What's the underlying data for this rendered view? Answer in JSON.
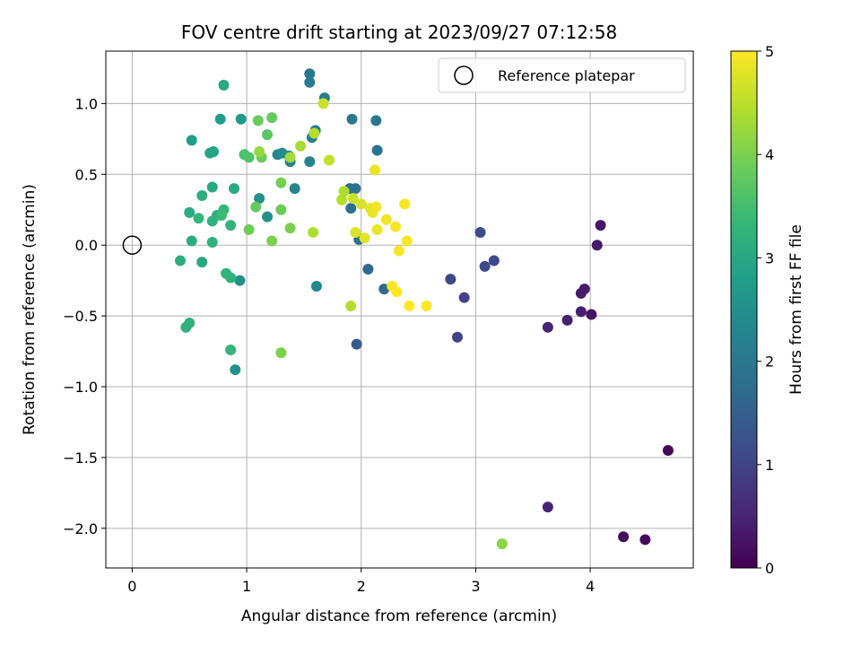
{
  "chart_data": {
    "type": "scatter",
    "title": "FOV centre drift starting at 2023/09/27 07:12:58",
    "xlabel": "Angular distance from reference (arcmin)",
    "ylabel": "Rotation from reference (arcmin)",
    "xlim": [
      -0.23,
      4.9
    ],
    "ylim": [
      -2.28,
      1.37
    ],
    "xticks": [
      0,
      1,
      2,
      3,
      4
    ],
    "yticks": [
      -2.0,
      -1.5,
      -1.0,
      -0.5,
      0.0,
      0.5,
      1.0
    ],
    "xtick_labels": [
      "0",
      "1",
      "2",
      "3",
      "4"
    ],
    "ytick_labels": [
      "−2.0",
      "−1.5",
      "−1.0",
      "−0.5",
      "0.0",
      "0.5",
      "1.0"
    ],
    "grid": true,
    "colormap": "viridis",
    "colorbar": {
      "label": "Hours from first FF file",
      "range": [
        0,
        5
      ],
      "ticks": [
        0,
        1,
        2,
        3,
        4,
        5
      ],
      "tick_labels": [
        "0",
        "1",
        "2",
        "3",
        "4",
        "5"
      ]
    },
    "legend": {
      "position": "top-right",
      "entries": [
        {
          "label": "Reference platepar",
          "marker": "open-circle"
        }
      ]
    },
    "reference_point": {
      "x": 0.0,
      "y": 0.0
    },
    "points": [
      {
        "x": 4.68,
        "y": -1.45,
        "c": 0.1
      },
      {
        "x": 4.48,
        "y": -2.08,
        "c": 0.15
      },
      {
        "x": 4.29,
        "y": -2.06,
        "c": 0.15
      },
      {
        "x": 4.09,
        "y": 0.14,
        "c": 0.3
      },
      {
        "x": 4.06,
        "y": 0.0,
        "c": 0.35
      },
      {
        "x": 4.01,
        "y": -0.49,
        "c": 0.25
      },
      {
        "x": 3.95,
        "y": -0.31,
        "c": 0.35
      },
      {
        "x": 3.92,
        "y": -0.34,
        "c": 0.35
      },
      {
        "x": 3.92,
        "y": -0.47,
        "c": 0.4
      },
      {
        "x": 3.8,
        "y": -0.53,
        "c": 0.45
      },
      {
        "x": 3.63,
        "y": -0.58,
        "c": 0.5
      },
      {
        "x": 3.63,
        "y": -1.85,
        "c": 0.5
      },
      {
        "x": 3.16,
        "y": -0.11,
        "c": 1.1
      },
      {
        "x": 3.08,
        "y": -0.15,
        "c": 1.1
      },
      {
        "x": 3.04,
        "y": 0.09,
        "c": 1.15
      },
      {
        "x": 2.9,
        "y": -0.37,
        "c": 1.0
      },
      {
        "x": 2.84,
        "y": -0.65,
        "c": 1.0
      },
      {
        "x": 2.78,
        "y": -0.24,
        "c": 1.1
      },
      {
        "x": 2.2,
        "y": -0.31,
        "c": 1.7
      },
      {
        "x": 2.06,
        "y": -0.17,
        "c": 1.7
      },
      {
        "x": 1.96,
        "y": -0.7,
        "c": 1.4
      },
      {
        "x": 1.98,
        "y": 0.04,
        "c": 1.85
      },
      {
        "x": 1.91,
        "y": 0.26,
        "c": 1.85
      },
      {
        "x": 1.95,
        "y": 0.4,
        "c": 1.9
      },
      {
        "x": 1.9,
        "y": 0.4,
        "c": 1.9
      },
      {
        "x": 2.14,
        "y": 0.67,
        "c": 1.9
      },
      {
        "x": 2.13,
        "y": 0.88,
        "c": 2.0
      },
      {
        "x": 1.92,
        "y": 0.89,
        "c": 2.0
      },
      {
        "x": 1.55,
        "y": 1.21,
        "c": 2.0
      },
      {
        "x": 1.55,
        "y": 1.15,
        "c": 2.05
      },
      {
        "x": 1.68,
        "y": 1.04,
        "c": 2.1
      },
      {
        "x": 1.6,
        "y": 0.81,
        "c": 2.1
      },
      {
        "x": 1.57,
        "y": 0.76,
        "c": 2.2
      },
      {
        "x": 1.55,
        "y": 0.59,
        "c": 2.25
      },
      {
        "x": 1.42,
        "y": 0.4,
        "c": 2.3
      },
      {
        "x": 1.61,
        "y": -0.29,
        "c": 2.35
      },
      {
        "x": 1.38,
        "y": 0.59,
        "c": 2.15
      },
      {
        "x": 1.37,
        "y": 0.63,
        "c": 2.2
      },
      {
        "x": 1.27,
        "y": 0.64,
        "c": 2.25
      },
      {
        "x": 1.31,
        "y": 0.65,
        "c": 2.4
      },
      {
        "x": 1.18,
        "y": 0.2,
        "c": 2.5
      },
      {
        "x": 1.11,
        "y": 0.33,
        "c": 2.5
      },
      {
        "x": 0.94,
        "y": -0.25,
        "c": 2.5
      },
      {
        "x": 0.9,
        "y": -0.88,
        "c": 2.5
      },
      {
        "x": 0.95,
        "y": 0.89,
        "c": 2.7
      },
      {
        "x": 0.77,
        "y": 0.89,
        "c": 2.8
      },
      {
        "x": 0.8,
        "y": 1.13,
        "c": 3.0
      },
      {
        "x": 0.52,
        "y": 0.74,
        "c": 2.8
      },
      {
        "x": 0.68,
        "y": 0.65,
        "c": 2.9
      },
      {
        "x": 0.71,
        "y": 0.66,
        "c": 2.9
      },
      {
        "x": 0.7,
        "y": 0.41,
        "c": 3.0
      },
      {
        "x": 0.89,
        "y": 0.4,
        "c": 3.05
      },
      {
        "x": 0.61,
        "y": 0.35,
        "c": 3.1
      },
      {
        "x": 0.5,
        "y": 0.23,
        "c": 3.05
      },
      {
        "x": 0.74,
        "y": 0.21,
        "c": 3.2
      },
      {
        "x": 0.8,
        "y": 0.25,
        "c": 3.3
      },
      {
        "x": 0.78,
        "y": 0.21,
        "c": 3.4
      },
      {
        "x": 0.58,
        "y": 0.19,
        "c": 3.3
      },
      {
        "x": 0.7,
        "y": 0.17,
        "c": 3.2
      },
      {
        "x": 0.86,
        "y": 0.14,
        "c": 3.25
      },
      {
        "x": 0.52,
        "y": 0.03,
        "c": 3.1
      },
      {
        "x": 0.7,
        "y": 0.02,
        "c": 3.2
      },
      {
        "x": 0.42,
        "y": -0.11,
        "c": 3.1
      },
      {
        "x": 0.61,
        "y": -0.12,
        "c": 3.0
      },
      {
        "x": 0.82,
        "y": -0.2,
        "c": 3.25
      },
      {
        "x": 0.86,
        "y": -0.23,
        "c": 3.2
      },
      {
        "x": 0.5,
        "y": -0.55,
        "c": 3.2
      },
      {
        "x": 0.47,
        "y": -0.58,
        "c": 3.2
      },
      {
        "x": 0.86,
        "y": -0.74,
        "c": 3.3
      },
      {
        "x": 0.98,
        "y": 0.64,
        "c": 3.55
      },
      {
        "x": 1.02,
        "y": 0.62,
        "c": 3.6
      },
      {
        "x": 1.18,
        "y": 0.78,
        "c": 3.7
      },
      {
        "x": 1.22,
        "y": 0.9,
        "c": 3.8
      },
      {
        "x": 1.1,
        "y": 0.88,
        "c": 3.85
      },
      {
        "x": 1.13,
        "y": 0.62,
        "c": 3.9
      },
      {
        "x": 1.08,
        "y": 0.27,
        "c": 3.8
      },
      {
        "x": 1.02,
        "y": 0.11,
        "c": 3.9
      },
      {
        "x": 1.22,
        "y": 0.03,
        "c": 4.0
      },
      {
        "x": 1.3,
        "y": 0.25,
        "c": 3.85
      },
      {
        "x": 1.3,
        "y": 0.44,
        "c": 3.95
      },
      {
        "x": 1.38,
        "y": 0.12,
        "c": 4.0
      },
      {
        "x": 1.3,
        "y": -0.76,
        "c": 4.0
      },
      {
        "x": 1.58,
        "y": 0.09,
        "c": 4.4
      },
      {
        "x": 1.11,
        "y": 0.66,
        "c": 4.2
      },
      {
        "x": 1.38,
        "y": 0.62,
        "c": 4.3
      },
      {
        "x": 1.47,
        "y": 0.7,
        "c": 4.35
      },
      {
        "x": 1.59,
        "y": 0.79,
        "c": 4.45
      },
      {
        "x": 1.67,
        "y": 1.0,
        "c": 4.6
      },
      {
        "x": 1.72,
        "y": 0.6,
        "c": 4.55
      },
      {
        "x": 1.83,
        "y": 0.32,
        "c": 4.45
      },
      {
        "x": 1.85,
        "y": 0.38,
        "c": 4.4
      },
      {
        "x": 1.91,
        "y": -0.43,
        "c": 4.45
      },
      {
        "x": 3.23,
        "y": -2.11,
        "c": 4.1
      },
      {
        "x": 1.93,
        "y": 0.33,
        "c": 4.6
      },
      {
        "x": 2.0,
        "y": 0.29,
        "c": 4.7
      },
      {
        "x": 1.95,
        "y": 0.09,
        "c": 4.75
      },
      {
        "x": 2.03,
        "y": 0.05,
        "c": 4.8
      },
      {
        "x": 2.08,
        "y": 0.26,
        "c": 4.8
      },
      {
        "x": 2.1,
        "y": 0.23,
        "c": 4.85
      },
      {
        "x": 2.13,
        "y": 0.27,
        "c": 4.9
      },
      {
        "x": 2.12,
        "y": 0.53,
        "c": 4.85
      },
      {
        "x": 2.14,
        "y": 0.11,
        "c": 4.85
      },
      {
        "x": 2.22,
        "y": 0.18,
        "c": 4.9
      },
      {
        "x": 2.3,
        "y": 0.13,
        "c": 4.95
      },
      {
        "x": 2.38,
        "y": 0.29,
        "c": 4.95
      },
      {
        "x": 2.4,
        "y": 0.03,
        "c": 4.95
      },
      {
        "x": 2.33,
        "y": -0.04,
        "c": 4.95
      },
      {
        "x": 2.27,
        "y": -0.29,
        "c": 4.95
      },
      {
        "x": 2.31,
        "y": -0.33,
        "c": 5.0
      },
      {
        "x": 2.42,
        "y": -0.43,
        "c": 5.0
      },
      {
        "x": 2.57,
        "y": -0.43,
        "c": 5.0
      }
    ]
  }
}
